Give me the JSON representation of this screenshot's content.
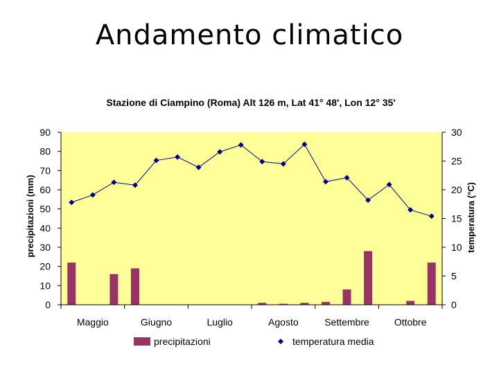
{
  "slide": {
    "title": "Andamento climatico"
  },
  "chart_data": {
    "type": "bar+line",
    "title": "Stazione di Ciampino (Roma) Alt 126 m, Lat 41° 48', Lon 12° 35'",
    "ylabel_left": "precipitazioni (mm)",
    "ylabel_right": "temperatura (°C)",
    "ylim_left": [
      0,
      90
    ],
    "ylim_right": [
      0,
      30
    ],
    "yticks_left": [
      0,
      10,
      20,
      30,
      40,
      50,
      60,
      70,
      80,
      90
    ],
    "yticks_right": [
      0,
      5,
      10,
      15,
      20,
      25,
      30
    ],
    "month_labels": [
      "Maggio",
      "Giugno",
      "Luglio",
      "Agosto",
      "Settembre",
      "Ottobre"
    ],
    "periods_per_month": 3,
    "colors": {
      "bars": "#993366",
      "line": "#000080",
      "plot_bg": "#ffff99"
    },
    "legend": {
      "position": "bottom",
      "entries": [
        "precipitazioni",
        "temperatura media"
      ]
    },
    "series": [
      {
        "name": "precipitazioni",
        "kind": "bar",
        "axis": "left",
        "values": [
          22,
          0,
          16,
          19,
          0,
          0,
          0,
          0,
          0,
          1,
          0.5,
          1,
          1.5,
          8,
          28,
          0,
          2,
          22
        ]
      },
      {
        "name": "temperatura media",
        "kind": "line",
        "axis": "right",
        "values": [
          17.8,
          19.1,
          21.3,
          20.8,
          25.1,
          25.7,
          23.9,
          26.6,
          27.8,
          24.9,
          24.5,
          27.9,
          21.4,
          22.1,
          18.2,
          20.9,
          16.5,
          15.4
        ]
      }
    ]
  }
}
